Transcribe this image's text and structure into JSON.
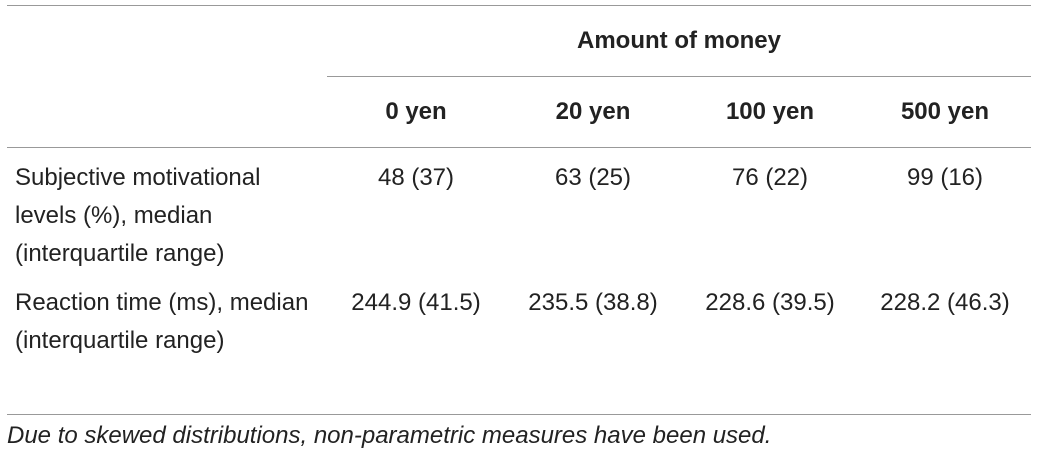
{
  "header": {
    "title": "Amount of money"
  },
  "table": {
    "columns": [
      "0 yen",
      "20 yen",
      "100 yen",
      "500 yen"
    ],
    "rows": [
      [
        "Subjective motivational levels (%), median (interquartile range)",
        "48 (37)",
        "63 (25)",
        "76 (22)",
        "99 (16)"
      ],
      [
        "Reaction time (ms), median (interquartile range)",
        "244.9 (41.5)",
        "235.5 (38.8)",
        "228.6 (39.5)",
        "228.2 (46.3)"
      ]
    ]
  },
  "footnote": "Due to skewed distributions, non-parametric measures have been used."
}
